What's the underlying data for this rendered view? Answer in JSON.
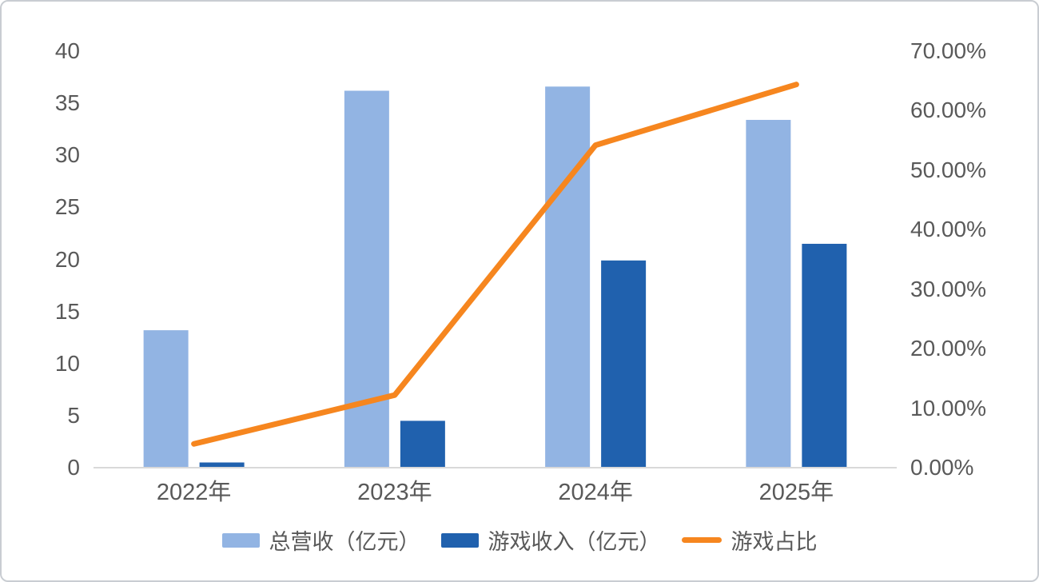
{
  "page": {
    "background": "#ffffff",
    "border_color": "#c9cdd2"
  },
  "chart_data": {
    "type": "bar",
    "subtype": "bar+line dual-axis combo",
    "title": "",
    "categories": [
      "2022年",
      "2023年",
      "2024年",
      "2025年"
    ],
    "series": [
      {
        "name": "总营收（亿元）",
        "type": "bar",
        "axis": "left",
        "color": "#92B4E3",
        "values": [
          13.2,
          36.2,
          36.6,
          33.4
        ]
      },
      {
        "name": "游戏收入（亿元）",
        "type": "bar",
        "axis": "left",
        "color": "#2061AE",
        "values": [
          0.5,
          4.5,
          19.9,
          21.5
        ]
      },
      {
        "name": "游戏占比",
        "type": "line",
        "axis": "right",
        "color": "#F6861F",
        "values": [
          4.0,
          12.2,
          54.2,
          64.4
        ]
      }
    ],
    "left_axis": {
      "min": 0,
      "max": 40,
      "step": 5,
      "ticks": [
        "0",
        "5",
        "10",
        "15",
        "20",
        "25",
        "30",
        "35",
        "40"
      ]
    },
    "right_axis": {
      "min": 0,
      "max": 70,
      "step": 10,
      "ticks": [
        "0.00%",
        "10.00%",
        "20.00%",
        "30.00%",
        "40.00%",
        "50.00%",
        "60.00%",
        "70.00%"
      ]
    },
    "grid": false,
    "legend_position": "bottom",
    "axis_text_color": "#595959",
    "axis_line_color": "#D9D9D9"
  }
}
